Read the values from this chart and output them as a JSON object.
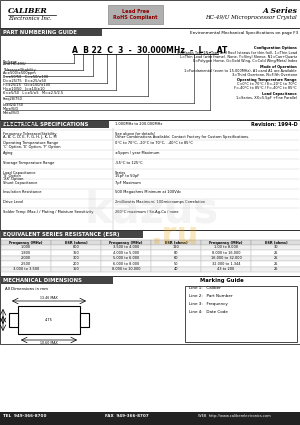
{
  "title_series": "A Series",
  "title_product": "HC-49/U Microprocessor Crystal",
  "company": "CALIBER",
  "company_sub": "Electronics Inc.",
  "section1_title": "PART NUMBERING GUIDE",
  "section1_right": "Environmental Mechanical Specifications on page F3",
  "electrical_title": "ELECTRICAL SPECIFICATIONS",
  "revision": "Revision: 1994-D",
  "elec_specs": [
    [
      "Frequency Range",
      "1.000MHz to 200.000MHz"
    ],
    [
      "Frequency Tolerance/Stability\nA, B, C, D, E, F, G, H, J, K, L, M",
      "See above for details!\nOther Combinations Available; Contact Factory for Custom Specifications."
    ],
    [
      "Operating Temperature Range\n'C' Option, 'E' Option, 'F' Option",
      "0°C to 70°C, -20°C to 70°C,  -40°C to 85°C"
    ],
    [
      "Aging",
      "±5ppm / year Maximum"
    ],
    [
      "Storage Temperature Range",
      "-55°C to 125°C"
    ],
    [
      "Load Capacitance\n'S' Option\n'XX' Option",
      "Series\n15pF to 50pF"
    ],
    [
      "Shunt Capacitance",
      "7pF Maximum"
    ],
    [
      "Insulation Resistance",
      "500 Megaohms Minimum at 100Vdc"
    ],
    [
      "Drive Level",
      "2milliwatts Maximum; 100microamps Correlation"
    ],
    [
      "Solder Temp (Max.) / Plating / Moisture Sensitivity",
      "260°C maximum / Sn-Ag-Cu / none"
    ]
  ],
  "esr_title": "EQUIVALENT SERIES RESISTANCE (ESR)",
  "esr_headers": [
    "Frequency (MHz)",
    "ESR (ohms)",
    "Frequency (MHz)",
    "ESR (ohms)",
    "Frequency (MHz)",
    "ESR (ohms)"
  ],
  "esr_rows": [
    [
      "1.000",
      "600",
      "3.500 to 4.000",
      "120",
      "1.00 to 8.000",
      "30"
    ],
    [
      "1.800",
      "350",
      "4.000 to 5.000",
      "80",
      "8.000 to 16.000",
      "25"
    ],
    [
      "2.000",
      "300",
      "5.000 to 6.000",
      "60",
      "16.000 to 32.000",
      "25"
    ],
    [
      "2.500",
      "200",
      "6.000 to 8.000",
      "50",
      "32.000 to 1.344",
      "25"
    ],
    [
      "3.000 to 3.500",
      "150",
      "8.000 to 10.000",
      "40",
      "43 to 200",
      "25"
    ]
  ],
  "mech_title": "MECHANICAL DIMENSIONS",
  "marking_title": "Marking Guide",
  "marking_lines": [
    "Line 1:   Caliber",
    "Line 2:   Part Number",
    "Line 3:   Frequency",
    "Line 4:   Date Code"
  ],
  "footer_tel": "TEL  949-366-8700",
  "footer_fax": "FAX  949-366-8707",
  "footer_web": "WEB  http://www.caliberelectronics.com",
  "bg_color": "#ffffff",
  "badge_bg": "#b0b0b0",
  "badge_text_color": "#8b0000",
  "section_title_bg": "#444444",
  "section_title_color": "#ffffff",
  "footer_bg": "#222222",
  "footer_color": "#ffffff"
}
